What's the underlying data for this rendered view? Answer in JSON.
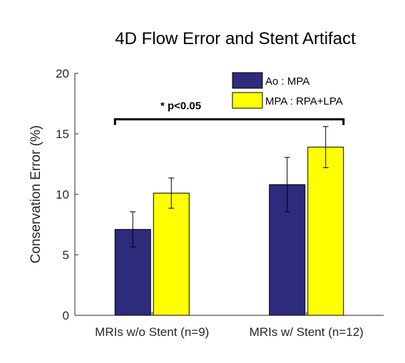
{
  "chart_data": {
    "type": "bar",
    "title": "4D Flow Error and Stent Artifact",
    "xlabel": "",
    "ylabel": "Conservation Error (%)",
    "ylim": [
      0,
      20
    ],
    "yticks": [
      0,
      5,
      10,
      15,
      20
    ],
    "grid": false,
    "legend_position": "top-right",
    "categories": [
      "MRIs w/o Stent (n=9)",
      "MRIs w/ Stent (n=12)"
    ],
    "series": [
      {
        "name": "Ao : MPA",
        "color": "#2e2a7c",
        "values": [
          7.1,
          10.8
        ],
        "errors": [
          1.45,
          2.25
        ]
      },
      {
        "name": "MPA : RPA+LPA",
        "color": "#ffff00",
        "values": [
          10.1,
          13.9
        ],
        "errors": [
          1.25,
          1.7
        ]
      }
    ],
    "annotation": {
      "text": "* p<0.05",
      "from_category": 0,
      "to_category": 1,
      "y": 16.2
    }
  }
}
